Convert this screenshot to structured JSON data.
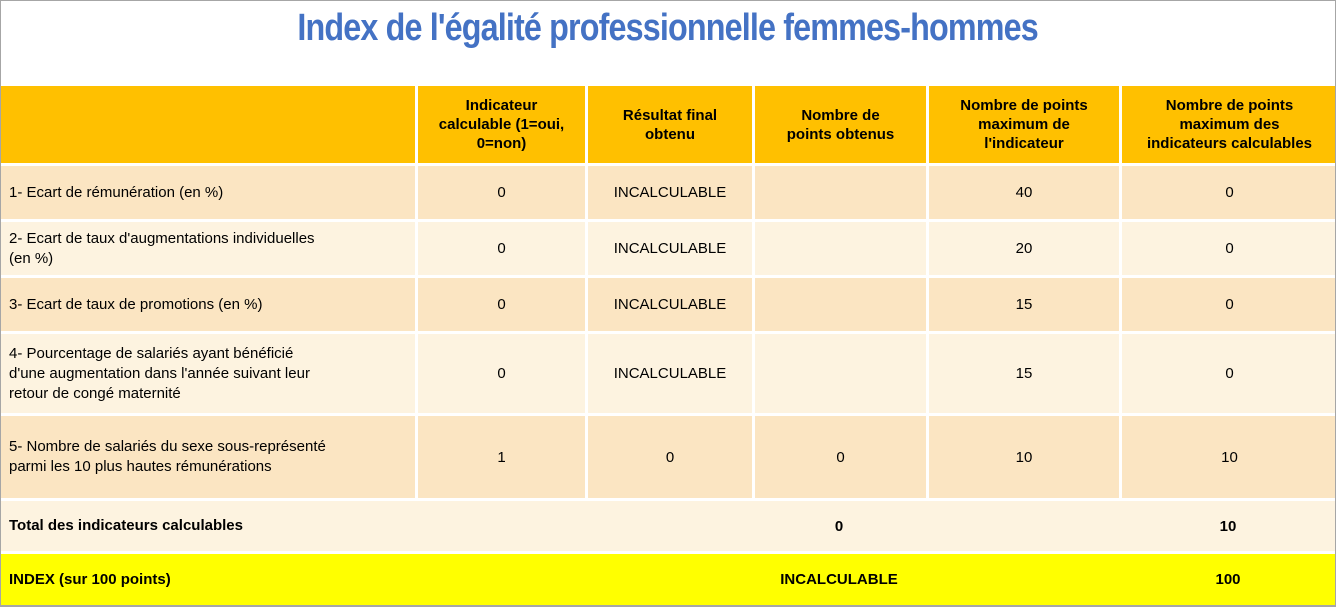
{
  "title": "Index de l'égalité professionnelle femmes-hommes",
  "colors": {
    "title_color": "#4472C4",
    "header_bg": "#FFC000",
    "row_odd_bg": "#FBE5C2",
    "row_even_bg": "#FDF3E0",
    "total_bg": "#FDF3E0",
    "index_bg": "#FFFF00"
  },
  "table": {
    "columns": [
      "",
      "Indicateur\ncalculable (1=oui,\n0=non)",
      "Résultat final\nobtenu",
      "Nombre de\npoints obtenus",
      "Nombre de points\nmaximum de\nl'indicateur",
      "Nombre de points\nmaximum des\nindicateurs calculables"
    ],
    "rows": [
      {
        "label": "1- Ecart de rémunération (en %)",
        "calculable": "0",
        "resultat": "INCALCULABLE",
        "points_obtenus": "",
        "points_max_indicateur": "40",
        "points_max_calculables": "0"
      },
      {
        "label": "2- Ecart de taux d'augmentations individuelles\n(en %)",
        "calculable": "0",
        "resultat": "INCALCULABLE",
        "points_obtenus": "",
        "points_max_indicateur": "20",
        "points_max_calculables": "0"
      },
      {
        "label": "3- Ecart de taux de promotions (en %)",
        "calculable": "0",
        "resultat": "INCALCULABLE",
        "points_obtenus": "",
        "points_max_indicateur": "15",
        "points_max_calculables": "0"
      },
      {
        "label": "4- Pourcentage de salariés ayant bénéficié\nd'une augmentation dans l'année suivant leur\nretour de congé maternité",
        "calculable": "0",
        "resultat": "INCALCULABLE",
        "points_obtenus": "",
        "points_max_indicateur": "15",
        "points_max_calculables": "0"
      },
      {
        "label": "5- Nombre de salariés du sexe sous-représenté\nparmi les 10 plus hautes rémunérations",
        "calculable": "1",
        "resultat": "0",
        "points_obtenus": "0",
        "points_max_indicateur": "10",
        "points_max_calculables": "10"
      }
    ],
    "total_row": {
      "label": "Total des indicateurs calculables",
      "points_obtenus": "0",
      "points_max_calculables": "10"
    },
    "index_row": {
      "label": "INDEX (sur 100 points)",
      "resultat": "INCALCULABLE",
      "value": "100"
    }
  }
}
